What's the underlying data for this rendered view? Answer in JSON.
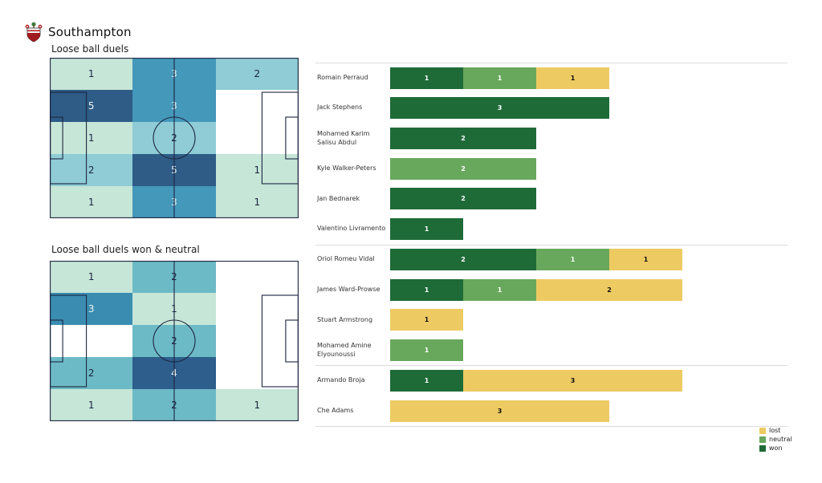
{
  "header": {
    "team": "Southampton",
    "logo": "southampton-crest-icon"
  },
  "chart_data": [
    {
      "type": "heatmap",
      "title": "Loose ball duels",
      "description": "pitch zone grid 5 rows x 3 columns, attacking left to right",
      "grid": {
        "rows": 5,
        "cols": 3
      },
      "palette": {
        "1": "#c6e6d7",
        "2": "#8fccd5",
        "3": "#4498ba",
        "5": "#2e5c87",
        "empty": "#ffffff"
      },
      "cells": [
        [
          {
            "value": 1,
            "bg": "#c6e6d7",
            "fg": "#1d2540"
          },
          {
            "value": 3,
            "bg": "#4498ba",
            "fg": "#eef5f1"
          },
          {
            "value": 2,
            "bg": "#8fccd5",
            "fg": "#1d2540"
          }
        ],
        [
          {
            "value": 5,
            "bg": "#2e5c87",
            "fg": "#eef5f1"
          },
          {
            "value": 3,
            "bg": "#4498ba",
            "fg": "#eef5f1"
          },
          {
            "value": null,
            "bg": "#ffffff",
            "fg": "#1d2540"
          }
        ],
        [
          {
            "value": 1,
            "bg": "#c6e6d7",
            "fg": "#1d2540"
          },
          {
            "value": 2,
            "bg": "#8fccd5",
            "fg": "#1d2540"
          },
          {
            "value": null,
            "bg": "#ffffff",
            "fg": "#1d2540"
          }
        ],
        [
          {
            "value": 2,
            "bg": "#8fccd5",
            "fg": "#1d2540"
          },
          {
            "value": 5,
            "bg": "#2e5c87",
            "fg": "#eef5f1"
          },
          {
            "value": 1,
            "bg": "#c6e6d7",
            "fg": "#1d2540"
          }
        ],
        [
          {
            "value": 1,
            "bg": "#c6e6d7",
            "fg": "#1d2540"
          },
          {
            "value": 3,
            "bg": "#4498ba",
            "fg": "#eef5f1"
          },
          {
            "value": 1,
            "bg": "#c6e6d7",
            "fg": "#1d2540"
          }
        ]
      ]
    },
    {
      "type": "heatmap",
      "title": "Loose ball duels won & neutral",
      "description": "pitch zone grid 5 rows x 3 columns, attacking left to right",
      "grid": {
        "rows": 5,
        "cols": 3
      },
      "palette": {
        "1": "#c6e6d7",
        "2": "#6cbac6",
        "3": "#3a8db1",
        "4": "#2d5e8c",
        "empty": "#ffffff"
      },
      "cells": [
        [
          {
            "value": 1,
            "bg": "#c6e6d7",
            "fg": "#1d2540"
          },
          {
            "value": 2,
            "bg": "#6cbac6",
            "fg": "#1d2540"
          },
          {
            "value": null,
            "bg": "#ffffff",
            "fg": "#1d2540"
          }
        ],
        [
          {
            "value": 3,
            "bg": "#3a8db1",
            "fg": "#eef5f1"
          },
          {
            "value": 1,
            "bg": "#c6e6d7",
            "fg": "#1d2540"
          },
          {
            "value": null,
            "bg": "#ffffff",
            "fg": "#1d2540"
          }
        ],
        [
          {
            "value": null,
            "bg": "#ffffff",
            "fg": "#1d2540"
          },
          {
            "value": 2,
            "bg": "#6cbac6",
            "fg": "#1d2540"
          },
          {
            "value": null,
            "bg": "#ffffff",
            "fg": "#1d2540"
          }
        ],
        [
          {
            "value": 2,
            "bg": "#6cbac6",
            "fg": "#1d2540"
          },
          {
            "value": 4,
            "bg": "#2d5e8c",
            "fg": "#eef5f1"
          },
          {
            "value": null,
            "bg": "#ffffff",
            "fg": "#1d2540"
          }
        ],
        [
          {
            "value": 1,
            "bg": "#c6e6d7",
            "fg": "#1d2540"
          },
          {
            "value": 2,
            "bg": "#6cbac6",
            "fg": "#1d2540"
          },
          {
            "value": 1,
            "bg": "#c6e6d7",
            "fg": "#1d2540"
          }
        ]
      ]
    },
    {
      "type": "bar",
      "orientation": "horizontal",
      "stacked": true,
      "x_max": 4,
      "stack_order": [
        "won",
        "neutral",
        "lost"
      ],
      "colors": {
        "won": "#1e6b38",
        "neutral": "#68a85c",
        "lost": "#edca62"
      },
      "value_label_colors": {
        "won": "#ffffff",
        "neutral": "#ffffff",
        "lost": "#111111"
      },
      "players": [
        {
          "name": "Romain Perraud",
          "won": 1,
          "neutral": 1,
          "lost": 1
        },
        {
          "name": "Jack Stephens",
          "won": 3,
          "neutral": 0,
          "lost": 0
        },
        {
          "name": "Mohamed Karim Salisu Abdul",
          "won": 2,
          "neutral": 0,
          "lost": 0
        },
        {
          "name": "Kyle Walker-Peters",
          "won": 0,
          "neutral": 2,
          "lost": 0
        },
        {
          "name": "Jan Bednarek",
          "won": 2,
          "neutral": 0,
          "lost": 0
        },
        {
          "name": "Valentino Livramento",
          "won": 1,
          "neutral": 0,
          "lost": 0
        },
        {
          "name": "Oriol Romeu Vidal",
          "won": 2,
          "neutral": 1,
          "lost": 1
        },
        {
          "name": "James  Ward-Prowse",
          "won": 1,
          "neutral": 1,
          "lost": 2
        },
        {
          "name": "Stuart Armstrong",
          "won": 0,
          "neutral": 0,
          "lost": 1
        },
        {
          "name": "Mohamed Amine Elyounoussi",
          "won": 0,
          "neutral": 1,
          "lost": 0
        },
        {
          "name": "Armando Broja",
          "won": 1,
          "neutral": 0,
          "lost": 3
        },
        {
          "name": "Che Adams",
          "won": 0,
          "neutral": 0,
          "lost": 3
        }
      ],
      "group_separators_after_index": [
        5,
        9,
        11
      ],
      "top_separator": true,
      "legend": {
        "position": "bottom-right",
        "items": [
          {
            "label": "lost",
            "color": "#edca62"
          },
          {
            "label": "neutral",
            "color": "#68a85c"
          },
          {
            "label": "won",
            "color": "#1e6b38"
          }
        ]
      }
    }
  ]
}
